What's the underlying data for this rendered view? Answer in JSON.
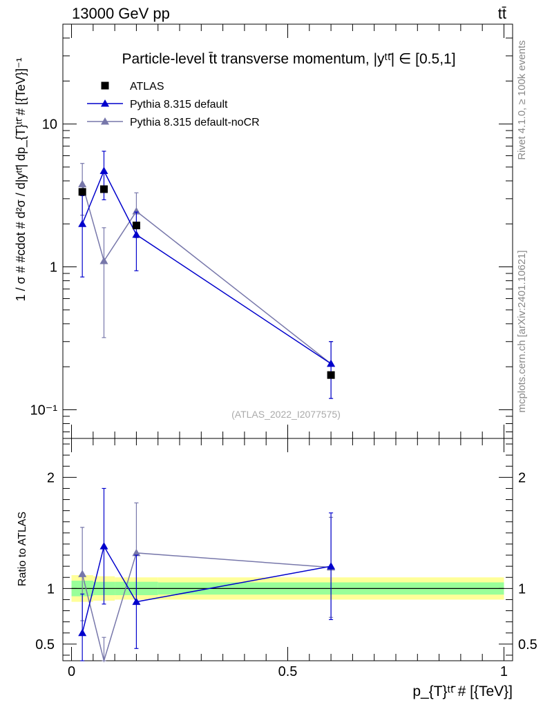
{
  "header": {
    "left": "13000 GeV pp",
    "right": "tt̄"
  },
  "side": {
    "rivet": "Rivet 4.1.0, ≥ 100k events",
    "source": "mcplots.cern.ch [arXiv:2401.10621]"
  },
  "chart_data": [
    {
      "type": "scatter",
      "panel": "main",
      "title": "Particle-level t̄t transverse momentum, |yᵗᵗ̄| ∈ [0.5,1]",
      "ylabel": "1 / σ # #cdot # d²σ / d|yᵗᵗ̄| dp_{T}ᵗᵗ̄ # [{TeV}]⁻¹",
      "xlabel": "",
      "yscale": "log",
      "ylim": [
        0.063,
        50
      ],
      "xlim": [
        -0.02,
        1.02
      ],
      "yticks": [
        {
          "value": 0.1,
          "label": "10⁻¹"
        },
        {
          "value": 1,
          "label": "1"
        },
        {
          "value": 10,
          "label": "10"
        }
      ],
      "watermark": "(ATLAS_2022_I2077575)",
      "legend_position": "top-left",
      "x": [
        0.025,
        0.075,
        0.15,
        0.6
      ],
      "series": [
        {
          "name": "ATLAS",
          "color": "#000000",
          "marker": "square",
          "line": false,
          "values": [
            3.35,
            3.5,
            1.95,
            0.175
          ],
          "err": [
            0.1,
            0.1,
            0.08,
            0.01
          ]
        },
        {
          "name": "Pythia 8.315 default",
          "color": "#0000cc",
          "marker": "triangle",
          "line": true,
          "values": [
            2.0,
            4.7,
            1.68,
            0.21
          ],
          "err_low": [
            1.15,
            1.75,
            0.74,
            0.09
          ],
          "err_high": [
            1.15,
            1.75,
            0.74,
            0.09
          ]
        },
        {
          "name": "Pythia 8.315 default-noCR",
          "color": "#7777aa",
          "marker": "triangle",
          "line": true,
          "values": [
            3.8,
            1.1,
            2.45,
            0.21
          ],
          "err_low": [
            1.5,
            0.78,
            0.85,
            0.09
          ],
          "err_high": [
            1.5,
            0.78,
            0.85,
            0.09
          ]
        }
      ]
    },
    {
      "type": "scatter",
      "panel": "ratio",
      "ylabel": "Ratio to ATLAS",
      "xlabel": "p_{T}ᵗᵗ̄ # [{TeV}]",
      "ylim": [
        0.35,
        2.35
      ],
      "xlim": [
        -0.02,
        1.02
      ],
      "xticks": [
        {
          "value": 0,
          "label": "0"
        },
        {
          "value": 0.5,
          "label": "0.5"
        },
        {
          "value": 1,
          "label": "1"
        }
      ],
      "yticks": [
        {
          "value": 0.5,
          "label": "0.5"
        },
        {
          "value": 1,
          "label": "1"
        },
        {
          "value": 2,
          "label": "2"
        }
      ],
      "bands": [
        {
          "name": "ATLAS total uncertainty",
          "color": "#ffff99",
          "bins": [
            [
              0,
              0.05,
              0.12
            ],
            [
              0.05,
              0.1,
              0.11
            ],
            [
              0.1,
              0.2,
              0.1
            ],
            [
              0.2,
              1.0,
              0.1
            ]
          ]
        },
        {
          "name": "ATLAS statistical uncertainty",
          "color": "#99ff99",
          "bins": [
            [
              0,
              0.05,
              0.07
            ],
            [
              0.05,
              0.1,
              0.06
            ],
            [
              0.1,
              0.2,
              0.06
            ],
            [
              0.2,
              1.0,
              0.055
            ]
          ]
        }
      ],
      "x": [
        0.025,
        0.075,
        0.15,
        0.6
      ],
      "series": [
        {
          "name": "Pythia 8.315 default",
          "color": "#0000cc",
          "marker": "triangle",
          "values": [
            0.6,
            1.38,
            0.88,
            1.2
          ],
          "err_low": [
            0.35,
            0.52,
            0.42,
            0.48
          ],
          "err_high": [
            0.35,
            0.52,
            0.42,
            0.48
          ]
        },
        {
          "name": "Pythia 8.315 default-noCR",
          "color": "#7777aa",
          "marker": "triangle",
          "values": [
            1.13,
            0.31,
            1.32,
            1.19
          ],
          "err_low": [
            0.42,
            0.25,
            0.45,
            0.45
          ],
          "err_high": [
            0.42,
            0.25,
            0.45,
            0.45
          ]
        }
      ]
    }
  ]
}
